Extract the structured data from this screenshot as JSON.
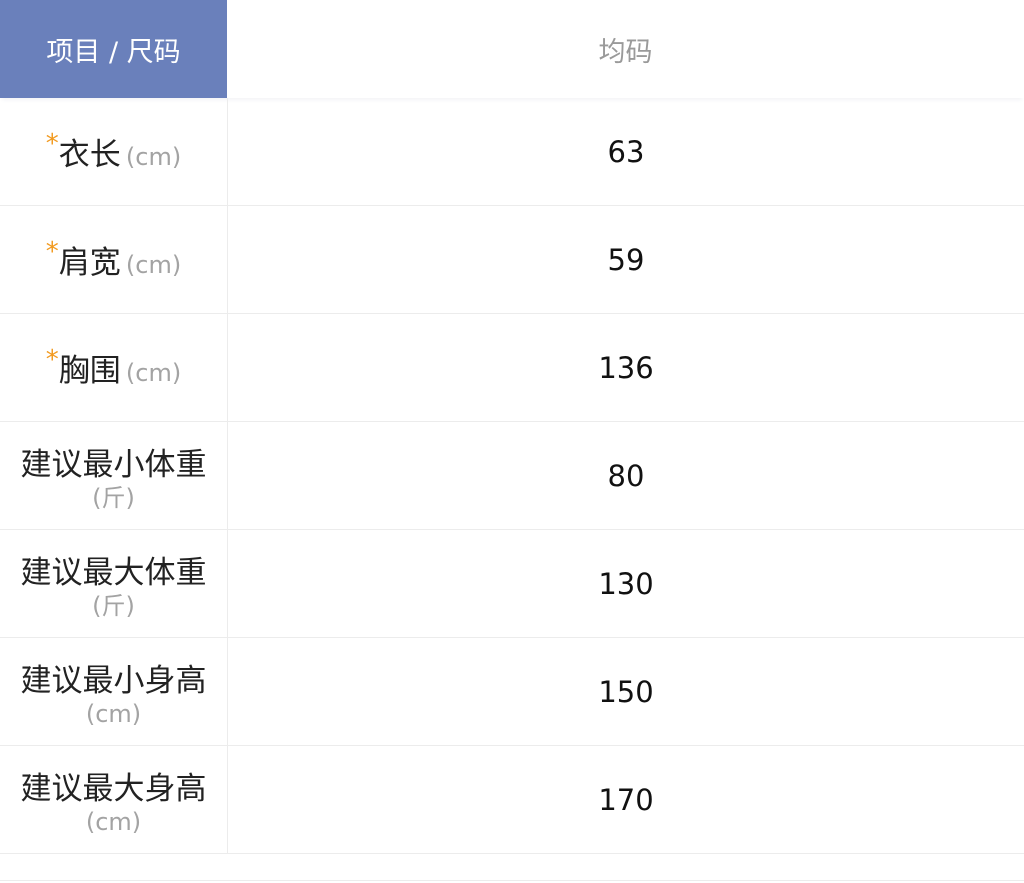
{
  "header": {
    "item_label": "项目 / 尺码",
    "size_label": "均码"
  },
  "colors": {
    "header_bg": "#6a80bb",
    "required_star": "#f29a1f"
  },
  "rows": [
    {
      "required": "*",
      "label": "衣长",
      "unit": "(cm)",
      "value": "63"
    },
    {
      "required": "*",
      "label": "肩宽",
      "unit": "(cm)",
      "value": "59"
    },
    {
      "required": "*",
      "label": "胸围",
      "unit": "(cm)",
      "value": "136"
    },
    {
      "label": "建议最小体重",
      "unit": "(斤)",
      "value": "80"
    },
    {
      "label": "建议最大体重",
      "unit": "(斤)",
      "value": "130"
    },
    {
      "label": "建议最小身高",
      "unit": "(cm)",
      "value": "150"
    },
    {
      "label": "建议最大身高",
      "unit": "(cm)",
      "value": "170"
    }
  ]
}
